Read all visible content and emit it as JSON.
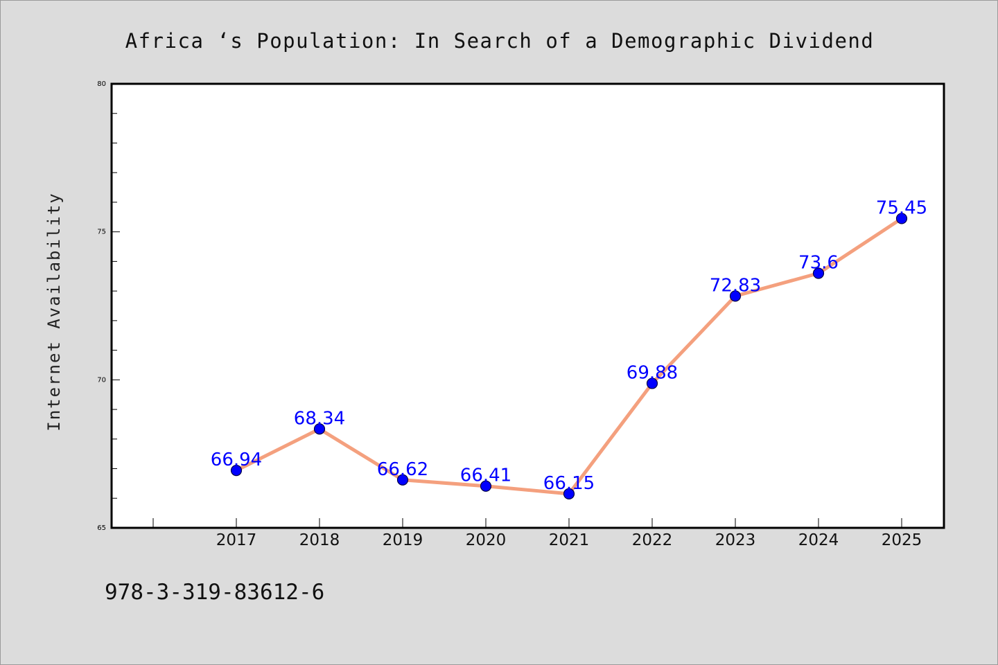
{
  "chart_data": {
    "type": "line",
    "title": "Africa ‘s Population: In Search of a Demographic Dividend",
    "xlabel": "",
    "ylabel": "Internet Availability",
    "categories": [
      "2017",
      "2018",
      "2019",
      "2020",
      "2021",
      "2022",
      "2023",
      "2024",
      "2025"
    ],
    "series": [
      {
        "values": [
          66.94,
          68.34,
          66.62,
          66.41,
          66.15,
          69.88,
          72.83,
          73.6,
          75.45
        ],
        "labels": [
          "66.94",
          "68.34",
          "66.62",
          "66.41",
          "66.15",
          "69.88",
          "72.83",
          "73.6",
          "75.45"
        ]
      }
    ],
    "ylim": [
      65,
      80
    ],
    "y_ticks": [
      65,
      70,
      75,
      80
    ],
    "y_tick_labels": [
      "65",
      "70",
      "75",
      "80"
    ],
    "grid": false,
    "legend": "none",
    "colors": {
      "line": "#f4a07e",
      "marker": "#0000ff",
      "marker_edge": "#000044",
      "data_label": "#0000ff",
      "plot_background": "#ffffff",
      "page_background": "#dcdcdc"
    }
  },
  "footer": {
    "isbn": "978-3-319-83612-6"
  }
}
